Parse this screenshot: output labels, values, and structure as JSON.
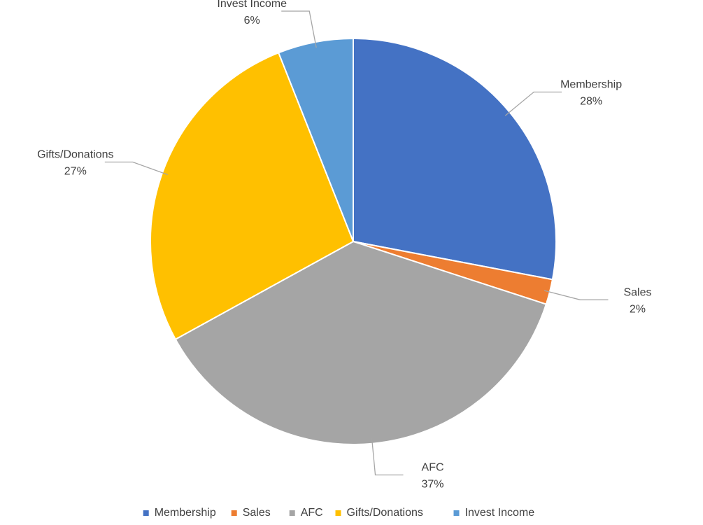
{
  "chart_data": {
    "type": "pie",
    "categories": [
      "Membership",
      "Sales",
      "AFC",
      "Gifts/Donations",
      "Invest Income"
    ],
    "values": [
      28,
      2,
      37,
      27,
      6
    ],
    "value_labels": [
      "28%",
      "2%",
      "37%",
      "27%",
      "6%"
    ],
    "colors": [
      "#4472c4",
      "#ed7d31",
      "#a5a5a5",
      "#ffc000",
      "#5b9bd5"
    ],
    "legend": "bottom"
  }
}
